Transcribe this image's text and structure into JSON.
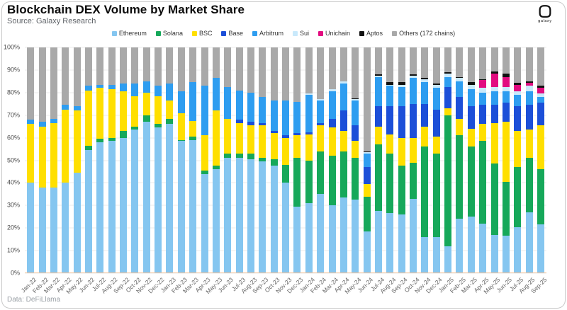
{
  "header": {
    "title": "Blockchain DEX Volume by Market Share",
    "subtitle": "Source: Galaxy Research",
    "logo_text": "galaxy"
  },
  "footer": {
    "data_source": "Data: DeFiLlama"
  },
  "chart_data": {
    "type": "bar",
    "stacked": true,
    "unit": "percent",
    "title": "Blockchain DEX Volume by Market Share",
    "grid": true,
    "legend_position": "top",
    "ylim": [
      0,
      100
    ],
    "y_ticks": [
      "0%",
      "10%",
      "20%",
      "30%",
      "40%",
      "50%",
      "60%",
      "70%",
      "80%",
      "90%",
      "100%"
    ],
    "categories": [
      "Jan-22",
      "Feb-22",
      "Mar-22",
      "Apr-22",
      "May-22",
      "Jun-22",
      "Jul-22",
      "Aug-22",
      "Sep-22",
      "Oct-22",
      "Nov-22",
      "Dec-22",
      "Jan-23",
      "Feb-23",
      "Mar-23",
      "Apr-23",
      "May-23",
      "Jun-23",
      "Jul-23",
      "Aug-23",
      "Sep-23",
      "Oct-23",
      "Nov-23",
      "Dec-23",
      "Jan-24",
      "Feb-24",
      "Mar-24",
      "Apr-24",
      "May-24",
      "Jun-24",
      "Jul-24",
      "Aug-24",
      "Sep-24",
      "Oct-24",
      "Nov-24",
      "Dec-24",
      "Jan-25",
      "Feb-25",
      "Mar-25",
      "Apr-25",
      "May-25",
      "Jun-25",
      "Jul-25",
      "Aug-25",
      "Sep-25"
    ],
    "series": [
      {
        "name": "Ethereum",
        "color": "#85c6f0",
        "values": [
          40,
          38,
          38,
          40,
          44.5,
          54.5,
          58,
          58.5,
          60,
          63.5,
          67,
          64.5,
          66,
          58.5,
          59,
          44,
          46,
          51,
          51,
          50.5,
          49.5,
          47.5,
          40,
          29.5,
          31,
          35,
          30,
          33.5,
          32.5,
          18.5,
          27.5,
          26.5,
          26,
          33,
          16,
          16,
          12,
          24,
          25,
          22,
          17,
          16.5,
          20.5,
          27,
          21.5
        ]
      },
      {
        "name": "Solana",
        "color": "#16a85a",
        "values": [
          0,
          0,
          0,
          0,
          0,
          2,
          1.5,
          1.5,
          3,
          1.5,
          3,
          1.5,
          2.5,
          0.5,
          1.5,
          1.5,
          1.5,
          2,
          2,
          2.5,
          1.5,
          3,
          8,
          21.5,
          19,
          19,
          22,
          20.5,
          18.5,
          15.5,
          29.5,
          26.5,
          21.5,
          16,
          40,
          37,
          58,
          37,
          31,
          36.5,
          31.5,
          24,
          26.5,
          24,
          24.5
        ]
      },
      {
        "name": "BSC",
        "color": "#ffdf00",
        "values": [
          26,
          27,
          28.5,
          32.5,
          27.5,
          24.5,
          22.5,
          21.5,
          17.5,
          13.5,
          10,
          12.5,
          8,
          12,
          7,
          15.5,
          24.5,
          15.5,
          13.5,
          12.5,
          14.5,
          11.5,
          12,
          10,
          11.5,
          11.5,
          12.5,
          9,
          7.5,
          5.5,
          8,
          8.5,
          12.5,
          11,
          9,
          7.5,
          3,
          7.5,
          8,
          7.5,
          18,
          26.5,
          16,
          12.5,
          19.5
        ]
      },
      {
        "name": "Base",
        "color": "#1c4fd8",
        "values": [
          0,
          0,
          0,
          0,
          0,
          0,
          0,
          0,
          0,
          0,
          0,
          0,
          0,
          0,
          0,
          0,
          0,
          0,
          1.5,
          1.5,
          1,
          1,
          1,
          1,
          1,
          1,
          4,
          9,
          7,
          7.5,
          9,
          12.5,
          14,
          15,
          10,
          12,
          9.5,
          9.5,
          10,
          8.5,
          8,
          8.5,
          11,
          11,
          10
        ]
      },
      {
        "name": "Arbitrum",
        "color": "#2e9df0",
        "values": [
          2,
          2,
          2,
          2,
          2,
          2,
          1.5,
          2,
          3.5,
          5.5,
          5,
          4.5,
          7.5,
          9.5,
          17,
          22,
          14.5,
          14,
          13,
          13,
          11.5,
          13.5,
          15.5,
          14,
          16.5,
          10,
          12,
          12,
          11,
          6,
          13,
          9,
          8.5,
          11.5,
          9.5,
          9.5,
          4.5,
          7,
          7.5,
          5.5,
          6,
          5,
          5,
          6,
          2.5
        ]
      },
      {
        "name": "Sui",
        "color": "#c9e9fb",
        "values": [
          0,
          0,
          0,
          0,
          0,
          0,
          0,
          0,
          0,
          0,
          0,
          0,
          0,
          0,
          0,
          0,
          0,
          0,
          0,
          0,
          0,
          0,
          0,
          0,
          0.5,
          0.5,
          1,
          1,
          0.5,
          0.5,
          0.5,
          0.5,
          1,
          1,
          1.5,
          1.5,
          1.5,
          1.5,
          2,
          2,
          2,
          2,
          1.5,
          2.5,
          1.5
        ]
      },
      {
        "name": "Unichain",
        "color": "#e20c80",
        "values": [
          0,
          0,
          0,
          0,
          0,
          0,
          0,
          0,
          0,
          0,
          0,
          0,
          0,
          0,
          0,
          0,
          0,
          0,
          0,
          0,
          0,
          0,
          0,
          0,
          0,
          0,
          0,
          0,
          0,
          0,
          0,
          0,
          0,
          0,
          0,
          0,
          0,
          0,
          0,
          3.5,
          6,
          4.5,
          3,
          1.5,
          2.5
        ]
      },
      {
        "name": "Aptos",
        "color": "#111111",
        "values": [
          0,
          0,
          0,
          0,
          0,
          0,
          0,
          0,
          0,
          0,
          0,
          0,
          0,
          0,
          0,
          0,
          0,
          0,
          0,
          0,
          0,
          0,
          0,
          0,
          0,
          0,
          0,
          0,
          0.5,
          0.5,
          0.5,
          1,
          1,
          0.5,
          0.5,
          0.5,
          0.5,
          0.5,
          1,
          0.5,
          1,
          1.5,
          1,
          0.5,
          1
        ]
      },
      {
        "name": "Others (172 chains)",
        "color": "#a9a9a9",
        "values": [
          32,
          33,
          31.5,
          25.5,
          26,
          17,
          16.5,
          16.5,
          16,
          16,
          15,
          17,
          16,
          19.5,
          15.5,
          17,
          13.5,
          17.5,
          19,
          20,
          22,
          23.5,
          23.5,
          24,
          20.5,
          23,
          18.5,
          15,
          22.5,
          46,
          12,
          15.5,
          15.5,
          12,
          13.5,
          16,
          11,
          13,
          15.5,
          14,
          10.5,
          11.5,
          15.5,
          15,
          17
        ]
      }
    ]
  }
}
